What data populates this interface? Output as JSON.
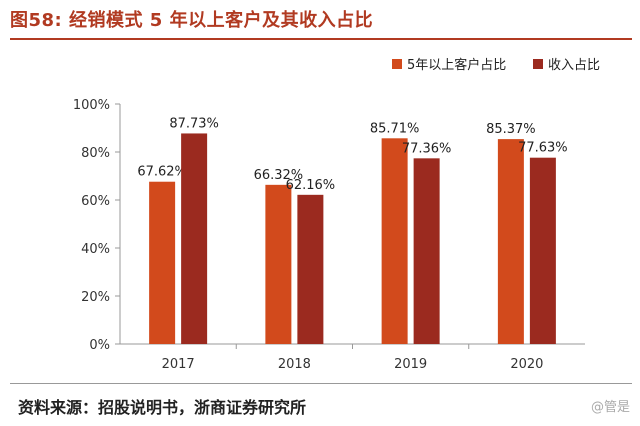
{
  "header": {
    "title": "图58:  经销模式 5 年以上客户及其收入占比"
  },
  "footer": {
    "source": "资料来源：招股说明书，浙商证券研究所",
    "watermark": "@管是"
  },
  "colors": {
    "accent": "#b13a21",
    "series1": "#d24a1c",
    "series2": "#9b2a1f"
  },
  "chart_data": {
    "type": "bar",
    "categories": [
      "2017",
      "2018",
      "2019",
      "2020"
    ],
    "series": [
      {
        "name": "5年以上客户占比",
        "values": [
          67.62,
          66.32,
          85.71,
          85.37
        ],
        "labels": [
          "67.62%",
          "66.32%",
          "85.71%",
          "85.37%"
        ],
        "color": "#d24a1c"
      },
      {
        "name": "收入占比",
        "values": [
          87.73,
          62.16,
          77.36,
          77.63
        ],
        "labels": [
          "87.73%",
          "62.16%",
          "77.36%",
          "77.63%"
        ],
        "color": "#9b2a1f"
      }
    ],
    "ylim": [
      0,
      100
    ],
    "yticks": [
      0,
      20,
      40,
      60,
      80,
      100
    ],
    "ytick_labels": [
      "0%",
      "20%",
      "40%",
      "60%",
      "80%",
      "100%"
    ],
    "xlabel": "",
    "ylabel": "",
    "grid": false,
    "legend_position": "top-right"
  }
}
